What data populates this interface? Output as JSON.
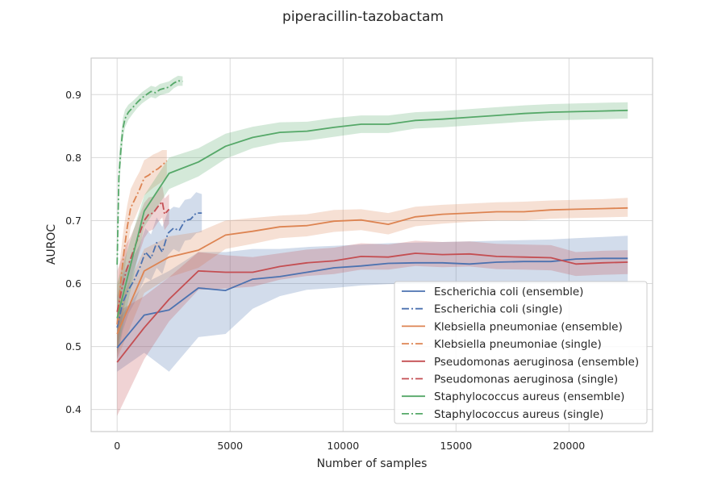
{
  "chart_data": {
    "type": "line",
    "title": "piperacillin-tazobactam",
    "xlabel": "Number of samples",
    "ylabel": "AUROC",
    "xlim": [
      -1150,
      23700
    ],
    "ylim": [
      0.365,
      0.958
    ],
    "xticks": [
      0,
      5000,
      10000,
      15000,
      20000
    ],
    "xtick_labels": [
      "0",
      "5000",
      "10000",
      "15000",
      "20000"
    ],
    "yticks": [
      0.4,
      0.5,
      0.6,
      0.7,
      0.8,
      0.9
    ],
    "ytick_labels": [
      "0.4",
      "0.5",
      "0.6",
      "0.7",
      "0.8",
      "0.9"
    ],
    "grid": true,
    "legend_position": "lower-right",
    "series": [
      {
        "name": "Escherichia coli (ensemble)",
        "color": "#4c72b0",
        "style": "solid",
        "x": [
          0,
          1200,
          2300,
          3600,
          4800,
          6000,
          7200,
          8400,
          9600,
          10800,
          12000,
          13200,
          14400,
          15600,
          16800,
          18000,
          19200,
          20300,
          21500,
          22600
        ],
        "y": [
          0.498,
          0.55,
          0.558,
          0.593,
          0.589,
          0.607,
          0.611,
          0.618,
          0.625,
          0.628,
          0.632,
          0.633,
          0.633,
          0.631,
          0.634,
          0.635,
          0.635,
          0.639,
          0.64,
          0.64
        ],
        "ci_low": [
          0.46,
          0.49,
          0.46,
          0.515,
          0.52,
          0.56,
          0.58,
          0.59,
          0.593,
          0.597,
          0.599,
          0.6,
          0.6,
          0.6,
          0.6,
          0.6,
          0.6,
          0.602,
          0.602,
          0.602
        ],
        "ci_high": [
          0.54,
          0.6,
          0.62,
          0.65,
          0.65,
          0.655,
          0.655,
          0.658,
          0.66,
          0.662,
          0.664,
          0.665,
          0.666,
          0.667,
          0.668,
          0.669,
          0.67,
          0.672,
          0.674,
          0.676
        ]
      },
      {
        "name": "Escherichia coli (single)",
        "color": "#4c72b0",
        "style": "dashdot",
        "x": [
          0,
          250,
          500,
          750,
          1000,
          1250,
          1500,
          1750,
          2000,
          2250,
          2500,
          2750,
          3000,
          3250,
          3500,
          3750
        ],
        "y": [
          0.53,
          0.57,
          0.59,
          0.605,
          0.625,
          0.65,
          0.64,
          0.665,
          0.65,
          0.68,
          0.688,
          0.684,
          0.7,
          0.702,
          0.712,
          0.712
        ],
        "ci_low": [
          0.48,
          0.525,
          0.552,
          0.568,
          0.59,
          0.61,
          0.605,
          0.625,
          0.615,
          0.645,
          0.655,
          0.65,
          0.668,
          0.67,
          0.68,
          0.682
        ],
        "ci_high": [
          0.58,
          0.615,
          0.632,
          0.645,
          0.662,
          0.688,
          0.678,
          0.705,
          0.69,
          0.715,
          0.722,
          0.72,
          0.733,
          0.735,
          0.745,
          0.742
        ]
      },
      {
        "name": "Klebsiella pneumoniae (ensemble)",
        "color": "#dd8452",
        "style": "solid",
        "x": [
          0,
          1200,
          2300,
          3600,
          4800,
          6000,
          7200,
          8400,
          9600,
          10800,
          12000,
          13200,
          14400,
          15600,
          16800,
          18000,
          19200,
          20300,
          21500,
          22600
        ],
        "y": [
          0.52,
          0.62,
          0.642,
          0.653,
          0.677,
          0.683,
          0.69,
          0.692,
          0.699,
          0.701,
          0.694,
          0.706,
          0.71,
          0.712,
          0.714,
          0.714,
          0.717,
          0.718,
          0.719,
          0.72
        ],
        "ci_low": [
          0.48,
          0.585,
          0.61,
          0.625,
          0.655,
          0.663,
          0.672,
          0.675,
          0.682,
          0.685,
          0.678,
          0.691,
          0.695,
          0.698,
          0.7,
          0.7,
          0.703,
          0.704,
          0.705,
          0.706
        ],
        "ci_high": [
          0.56,
          0.655,
          0.675,
          0.682,
          0.7,
          0.704,
          0.708,
          0.71,
          0.717,
          0.718,
          0.712,
          0.722,
          0.725,
          0.727,
          0.729,
          0.73,
          0.732,
          0.733,
          0.734,
          0.736
        ]
      },
      {
        "name": "Klebsiella pneumoniae (single)",
        "color": "#dd8452",
        "style": "dashdot",
        "x": [
          0,
          150,
          300,
          450,
          600,
          800,
          1000,
          1200,
          1400,
          1600,
          1800,
          2000,
          2200
        ],
        "y": [
          0.535,
          0.6,
          0.65,
          0.69,
          0.72,
          0.735,
          0.75,
          0.768,
          0.772,
          0.778,
          0.782,
          0.788,
          0.795
        ],
        "ci_low": [
          0.48,
          0.555,
          0.61,
          0.655,
          0.69,
          0.705,
          0.722,
          0.74,
          0.746,
          0.752,
          0.757,
          0.762,
          0.77
        ],
        "ci_high": [
          0.59,
          0.645,
          0.69,
          0.725,
          0.75,
          0.765,
          0.778,
          0.796,
          0.8,
          0.805,
          0.808,
          0.812,
          0.812
        ]
      },
      {
        "name": "Pseudomonas aeruginosa (ensemble)",
        "color": "#c44e52",
        "style": "solid",
        "x": [
          0,
          1200,
          2300,
          3600,
          4800,
          6000,
          7200,
          8400,
          9600,
          10800,
          12000,
          13200,
          14400,
          15600,
          16800,
          18000,
          19200,
          20300,
          21500,
          22600
        ],
        "y": [
          0.475,
          0.53,
          0.575,
          0.62,
          0.618,
          0.618,
          0.627,
          0.633,
          0.636,
          0.643,
          0.642,
          0.648,
          0.646,
          0.647,
          0.643,
          0.642,
          0.641,
          0.631,
          0.633,
          0.634
        ],
        "ci_low": [
          0.39,
          0.48,
          0.54,
          0.59,
          0.592,
          0.595,
          0.606,
          0.612,
          0.615,
          0.622,
          0.622,
          0.628,
          0.626,
          0.627,
          0.623,
          0.622,
          0.621,
          0.612,
          0.614,
          0.615
        ],
        "ci_high": [
          0.555,
          0.58,
          0.61,
          0.65,
          0.645,
          0.642,
          0.648,
          0.654,
          0.657,
          0.664,
          0.662,
          0.668,
          0.666,
          0.667,
          0.663,
          0.662,
          0.661,
          0.65,
          0.652,
          0.653
        ]
      },
      {
        "name": "Pseudomonas aeruginosa (single)",
        "color": "#c44e52",
        "style": "dashdot",
        "x": [
          0,
          200,
          400,
          600,
          800,
          1000,
          1200,
          1400,
          1600,
          1800,
          2000,
          2100,
          2300
        ],
        "y": [
          0.555,
          0.59,
          0.62,
          0.64,
          0.66,
          0.68,
          0.7,
          0.71,
          0.712,
          0.722,
          0.73,
          0.71,
          0.718
        ],
        "ci_low": [
          0.49,
          0.54,
          0.578,
          0.605,
          0.628,
          0.65,
          0.672,
          0.683,
          0.686,
          0.697,
          0.705,
          0.685,
          0.695
        ],
        "ci_high": [
          0.62,
          0.64,
          0.662,
          0.675,
          0.692,
          0.71,
          0.728,
          0.737,
          0.738,
          0.747,
          0.755,
          0.735,
          0.742
        ]
      },
      {
        "name": "Staphylococcus aureus (ensemble)",
        "color": "#55a868",
        "style": "solid",
        "x": [
          0,
          1200,
          2300,
          3600,
          4800,
          6000,
          7200,
          8400,
          9600,
          10800,
          12000,
          13200,
          14400,
          15600,
          16800,
          18000,
          19200,
          20300,
          21500,
          22600
        ],
        "y": [
          0.545,
          0.715,
          0.775,
          0.793,
          0.818,
          0.832,
          0.84,
          0.842,
          0.848,
          0.853,
          0.853,
          0.859,
          0.861,
          0.864,
          0.867,
          0.87,
          0.872,
          0.873,
          0.874,
          0.875
        ],
        "ci_low": [
          0.49,
          0.69,
          0.75,
          0.77,
          0.798,
          0.815,
          0.824,
          0.827,
          0.833,
          0.839,
          0.839,
          0.846,
          0.848,
          0.851,
          0.854,
          0.857,
          0.859,
          0.86,
          0.861,
          0.862
        ],
        "ci_high": [
          0.6,
          0.74,
          0.8,
          0.815,
          0.838,
          0.849,
          0.856,
          0.857,
          0.863,
          0.867,
          0.867,
          0.872,
          0.874,
          0.877,
          0.88,
          0.883,
          0.885,
          0.886,
          0.887,
          0.888
        ]
      },
      {
        "name": "Staphylococcus aureus (single)",
        "color": "#55a868",
        "style": "dashdot",
        "x": [
          0,
          80,
          160,
          250,
          350,
          500,
          700,
          900,
          1100,
          1300,
          1500,
          1700,
          1900,
          2100,
          2300,
          2500,
          2700,
          2900
        ],
        "y": [
          0.63,
          0.77,
          0.81,
          0.845,
          0.862,
          0.872,
          0.88,
          0.888,
          0.895,
          0.9,
          0.905,
          0.903,
          0.908,
          0.91,
          0.912,
          0.918,
          0.922,
          0.921
        ],
        "ci_low": [
          0.59,
          0.74,
          0.788,
          0.828,
          0.848,
          0.86,
          0.87,
          0.879,
          0.886,
          0.891,
          0.896,
          0.894,
          0.899,
          0.901,
          0.903,
          0.91,
          0.914,
          0.914
        ],
        "ci_high": [
          0.67,
          0.8,
          0.832,
          0.862,
          0.876,
          0.884,
          0.89,
          0.897,
          0.904,
          0.909,
          0.914,
          0.912,
          0.917,
          0.919,
          0.921,
          0.926,
          0.93,
          0.929
        ]
      }
    ]
  }
}
